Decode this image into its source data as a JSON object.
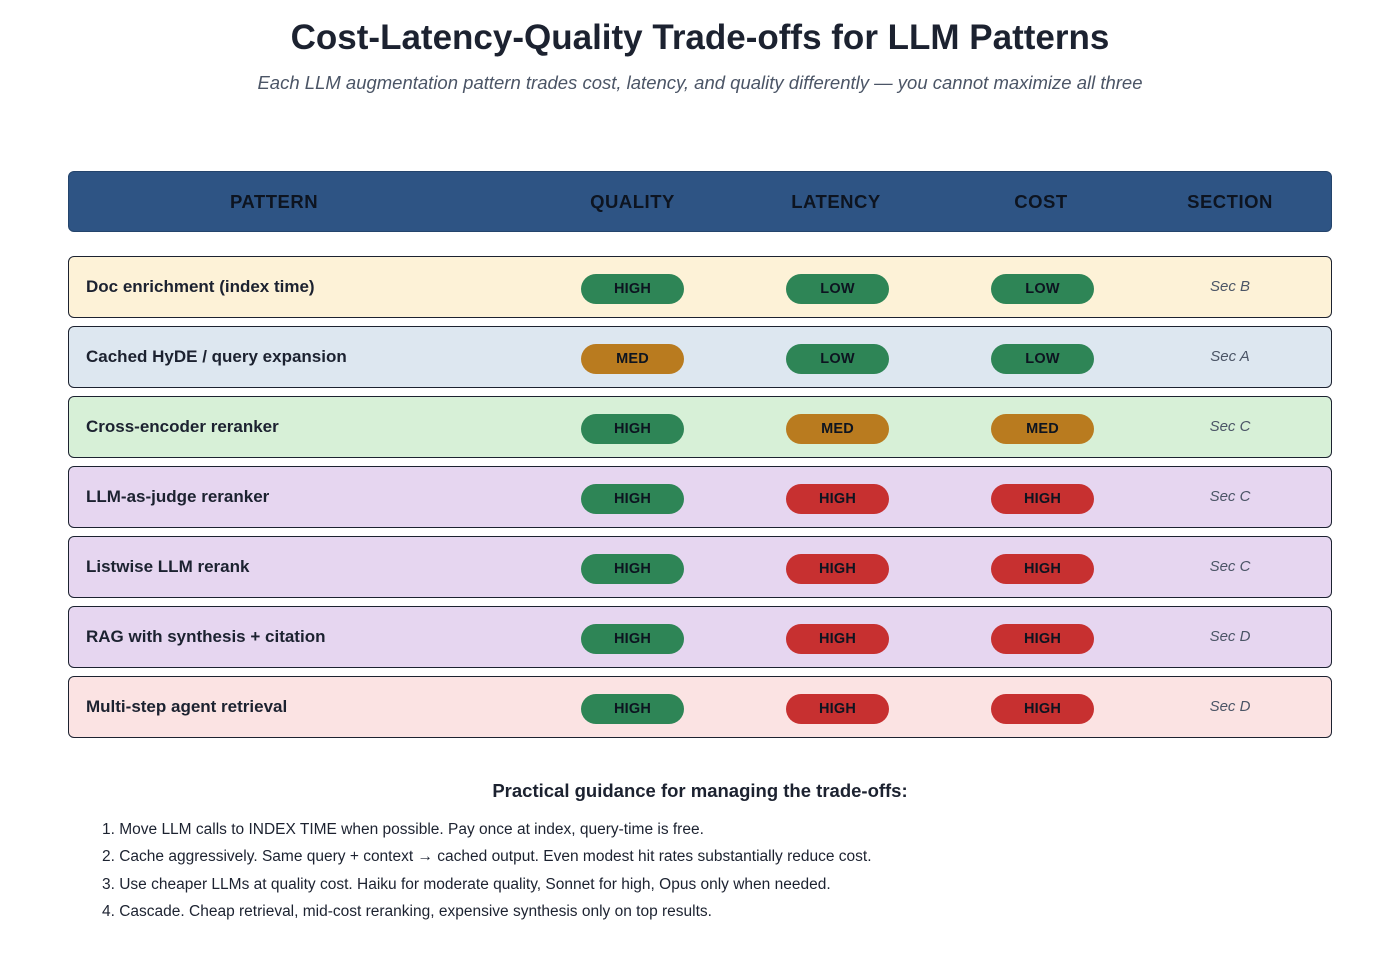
{
  "title": "Cost-Latency-Quality Trade-offs for LLM Patterns",
  "subtitle": "Each LLM augmentation pattern trades cost, latency, and quality differently — you cannot maximize all three",
  "table": {
    "headers": {
      "pattern": "PATTERN",
      "quality": "QUALITY",
      "latency": "LATENCY",
      "cost": "COST",
      "section": "SECTION"
    },
    "rows": [
      {
        "pattern": "Doc enrichment (index time)",
        "quality": "HIGH",
        "latency": "LOW",
        "cost": "LOW",
        "section": "Sec B",
        "bg": "#fdf2d7"
      },
      {
        "pattern": "Cached HyDE / query expansion",
        "quality": "MED",
        "latency": "LOW",
        "cost": "LOW",
        "section": "Sec A",
        "bg": "#dde7f0"
      },
      {
        "pattern": "Cross-encoder reranker",
        "quality": "HIGH",
        "latency": "MED",
        "cost": "MED",
        "section": "Sec C",
        "bg": "#d7f0d7"
      },
      {
        "pattern": "LLM-as-judge reranker",
        "quality": "HIGH",
        "latency": "HIGH",
        "cost": "HIGH",
        "section": "Sec C",
        "bg": "#e6d6f0"
      },
      {
        "pattern": "Listwise LLM rerank",
        "quality": "HIGH",
        "latency": "HIGH",
        "cost": "HIGH",
        "section": "Sec C",
        "bg": "#e6d6f0"
      },
      {
        "pattern": "RAG with synthesis + citation",
        "quality": "HIGH",
        "latency": "HIGH",
        "cost": "HIGH",
        "section": "Sec D",
        "bg": "#e6d6f0"
      },
      {
        "pattern": "Multi-step agent retrieval",
        "quality": "HIGH",
        "latency": "HIGH",
        "cost": "HIGH",
        "section": "Sec D",
        "bg": "#fbe3e3"
      }
    ]
  },
  "rating_colors": {
    "quality": {
      "HIGH": "#2e8556",
      "MED": "#b97b1f",
      "LOW": "#c73030"
    },
    "cost_latency": {
      "LOW": "#2e8556",
      "MED": "#b97b1f",
      "HIGH": "#c73030"
    }
  },
  "guidance": {
    "title": "Practical guidance for managing the trade-offs:",
    "items": [
      "1. Move LLM calls to INDEX TIME when possible. Pay once at index, query-time is free.",
      "2. Cache aggressively. Same query + context → cached output. Even modest hit rates substantially reduce cost.",
      "3. Use cheaper LLMs at quality cost. Haiku for moderate quality, Sonnet for high, Opus only when needed.",
      "4. Cascade. Cheap retrieval, mid-cost reranking, expensive synthesis only on top results."
    ]
  }
}
